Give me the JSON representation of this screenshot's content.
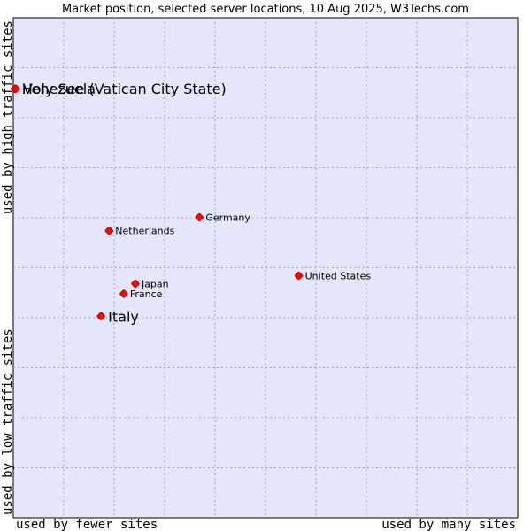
{
  "chart_data": {
    "type": "scatter",
    "title": "Market position, selected server locations, 10 Aug 2025, W3Techs.com",
    "xlabel_left": "used by fewer sites",
    "xlabel_right": "used by many sites",
    "ylabel_bottom": "used by low traffic sites",
    "ylabel_top": "used by high traffic sites",
    "xlim": [
      0,
      100
    ],
    "ylim": [
      0,
      100
    ],
    "grid": true,
    "plot_background": "#e6e6fa",
    "point_color": "#ff0000",
    "points": [
      {
        "label": "Holy See (Vatican City State)",
        "x": 0.3,
        "y": 85.8,
        "emphasis": true
      },
      {
        "label": "Venezuela",
        "x": 0.5,
        "y": 85.8,
        "emphasis": true
      },
      {
        "label": "Italy",
        "x": 17.4,
        "y": 40.3,
        "emphasis": true
      },
      {
        "label": "Germany",
        "x": 36.9,
        "y": 60.1,
        "emphasis": false
      },
      {
        "label": "Netherlands",
        "x": 19.0,
        "y": 57.4,
        "emphasis": false
      },
      {
        "label": "Japan",
        "x": 24.2,
        "y": 46.8,
        "emphasis": false
      },
      {
        "label": "France",
        "x": 21.9,
        "y": 44.8,
        "emphasis": false
      },
      {
        "label": "United States",
        "x": 56.6,
        "y": 48.4,
        "emphasis": false
      }
    ]
  }
}
